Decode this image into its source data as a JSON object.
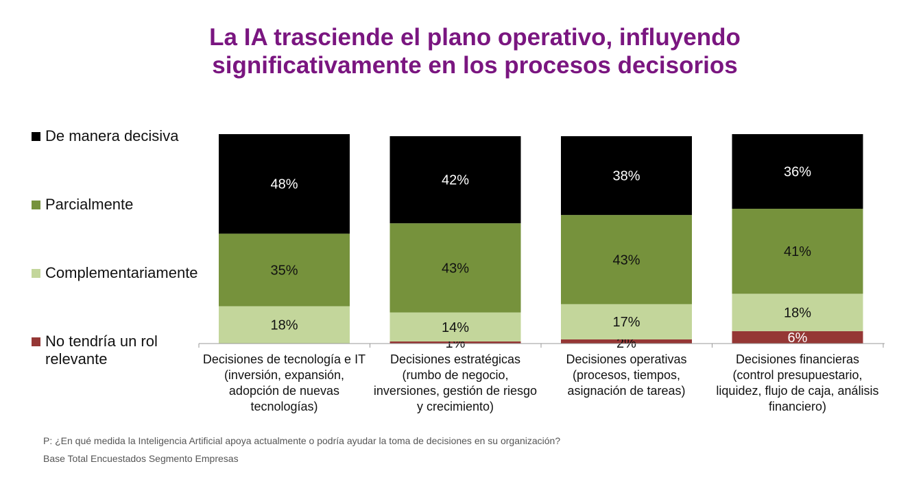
{
  "title_line1": "La IA trasciende el plano operativo, influyendo",
  "title_line2": "significativamente en los procesos decisorios",
  "footnote_question": "P: ¿En qué medida la Inteligencia Artificial apoya actualmente o podría ayudar la toma de decisiones en su organización?",
  "footnote_base": "Base Total Encuestados  Segmento Empresas",
  "colors": {
    "decisiva": "#000000",
    "parcial": "#76923c",
    "complementaria": "#c3d69b",
    "no_rol": "#953735",
    "title": "#7a1680"
  },
  "chart_data": {
    "type": "bar",
    "stacked": true,
    "title": "La IA trasciende el plano operativo, influyendo significativamente en los procesos decisorios",
    "categories": [
      [
        "Decisiones de tecnología e IT",
        "(inversión, expansión,",
        "adopción de nuevas",
        "tecnologías)"
      ],
      [
        "Decisiones estratégicas",
        "(rumbo de negocio,",
        "inversiones, gestión de riesgo",
        "y crecimiento)"
      ],
      [
        "Decisiones operativas",
        "(procesos, tiempos,",
        "asignación de tareas)"
      ],
      [
        "Decisiones financieras",
        "(control presupuestario,",
        "liquidez, flujo de caja, análisis",
        "financiero)"
      ]
    ],
    "series": [
      {
        "name": "No tendría un rol relevante",
        "legend_lines": [
          "No tendría un rol",
          "relevante"
        ],
        "color": "#953735",
        "values": [
          0,
          1,
          2,
          6
        ],
        "labels": [
          "",
          "1%",
          "2%",
          "6%"
        ]
      },
      {
        "name": "Complementariamente",
        "legend_lines": [
          "Complementariamente"
        ],
        "color": "#c3d69b",
        "values": [
          18,
          14,
          17,
          18
        ],
        "labels": [
          "18%",
          "14%",
          "17%",
          "18%"
        ]
      },
      {
        "name": "Parcialmente",
        "legend_lines": [
          "Parcialmente"
        ],
        "color": "#76923c",
        "values": [
          35,
          43,
          43,
          41
        ],
        "labels": [
          "35%",
          "43%",
          "43%",
          "41%"
        ]
      },
      {
        "name": "De manera decisiva",
        "legend_lines": [
          "De manera decisiva"
        ],
        "color": "#000000",
        "values": [
          48,
          42,
          38,
          36
        ],
        "labels": [
          "48%",
          "42%",
          "38%",
          "36%"
        ]
      }
    ],
    "ylim": [
      0,
      100
    ],
    "grid": false,
    "legend_position": "left"
  }
}
